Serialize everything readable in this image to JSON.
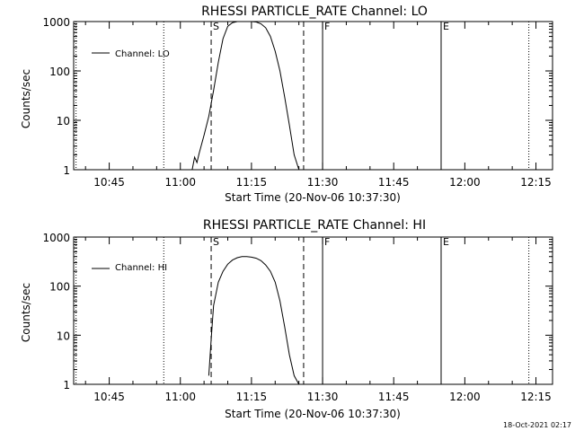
{
  "chart_data": [
    {
      "type": "line",
      "title": "RHESSI PARTICLE_RATE Channel: LO",
      "xlabel": "Start Time (20-Nov-06 10:37:30)",
      "ylabel": "Counts/sec",
      "yscale": "log",
      "ylim": [
        1,
        1000
      ],
      "xlim": [
        "10:37:30",
        "12:18:30"
      ],
      "x_ticks": [
        "10:45",
        "11:00",
        "11:15",
        "11:30",
        "11:45",
        "12:00",
        "12:15"
      ],
      "y_ticks": [
        "1",
        "10",
        "100",
        "1000"
      ],
      "grid": false,
      "legend_position": "top-left",
      "series": [
        {
          "name": "Channel: LO",
          "x": [
            "11:02:30",
            "11:03:00",
            "11:03:30",
            "11:04:00",
            "11:05:00",
            "11:06:00",
            "11:07:00",
            "11:08:00",
            "11:09:00",
            "11:10:00",
            "11:11:00",
            "11:12:00",
            "11:13:00",
            "11:14:00",
            "11:15:00",
            "11:16:00",
            "11:17:00",
            "11:18:00",
            "11:19:00",
            "11:20:00",
            "11:21:00",
            "11:22:00",
            "11:23:00",
            "11:24:00",
            "11:25:00"
          ],
          "y": [
            1,
            1.8,
            1.4,
            2.2,
            5,
            12,
            40,
            150,
            450,
            800,
            950,
            1000,
            1000,
            1000,
            1000,
            980,
            900,
            750,
            500,
            250,
            100,
            30,
            8,
            2,
            1
          ]
        }
      ],
      "vlines": [
        {
          "x": "10:56:30",
          "style": "dotted",
          "label": ""
        },
        {
          "x": "11:06:30",
          "style": "dashed",
          "label": "S"
        },
        {
          "x": "11:26:00",
          "style": "dashed",
          "label": ""
        },
        {
          "x": "11:30:00",
          "style": "solid",
          "label": "F"
        },
        {
          "x": "11:55:00",
          "style": "solid",
          "label": "E"
        },
        {
          "x": "12:13:30",
          "style": "dotted",
          "label": ""
        },
        {
          "x": "10:38:00",
          "style": "dotted",
          "label": ""
        }
      ]
    },
    {
      "type": "line",
      "title": "RHESSI PARTICLE_RATE Channel: HI",
      "xlabel": "Start Time (20-Nov-06 10:37:30)",
      "ylabel": "Counts/sec",
      "yscale": "log",
      "ylim": [
        1,
        1000
      ],
      "xlim": [
        "10:37:30",
        "12:18:30"
      ],
      "x_ticks": [
        "10:45",
        "11:00",
        "11:15",
        "11:30",
        "11:45",
        "12:00",
        "12:15"
      ],
      "y_ticks": [
        "1",
        "10",
        "100",
        "1000"
      ],
      "grid": false,
      "legend_position": "top-left",
      "series": [
        {
          "name": "Channel: HI",
          "x": [
            "11:06:00",
            "11:06:30",
            "11:07:00",
            "11:08:00",
            "11:09:00",
            "11:10:00",
            "11:11:00",
            "11:12:00",
            "11:13:00",
            "11:14:00",
            "11:15:00",
            "11:16:00",
            "11:17:00",
            "11:18:00",
            "11:19:00",
            "11:20:00",
            "11:21:00",
            "11:22:00",
            "11:23:00",
            "11:24:00",
            "11:25:00"
          ],
          "y": [
            1.5,
            8,
            40,
            120,
            200,
            280,
            340,
            380,
            400,
            400,
            390,
            370,
            330,
            270,
            200,
            120,
            50,
            15,
            4,
            1.5,
            1
          ]
        }
      ],
      "vlines": [
        {
          "x": "10:56:30",
          "style": "dotted",
          "label": ""
        },
        {
          "x": "11:06:30",
          "style": "dashed",
          "label": "S"
        },
        {
          "x": "11:26:00",
          "style": "dashed",
          "label": ""
        },
        {
          "x": "11:30:00",
          "style": "solid",
          "label": "F"
        },
        {
          "x": "11:55:00",
          "style": "solid",
          "label": "E"
        },
        {
          "x": "12:13:30",
          "style": "dotted",
          "label": ""
        },
        {
          "x": "10:38:00",
          "style": "dotted",
          "label": ""
        }
      ]
    }
  ],
  "footer": {
    "timestamp": "18-Oct-2021 02:17"
  }
}
